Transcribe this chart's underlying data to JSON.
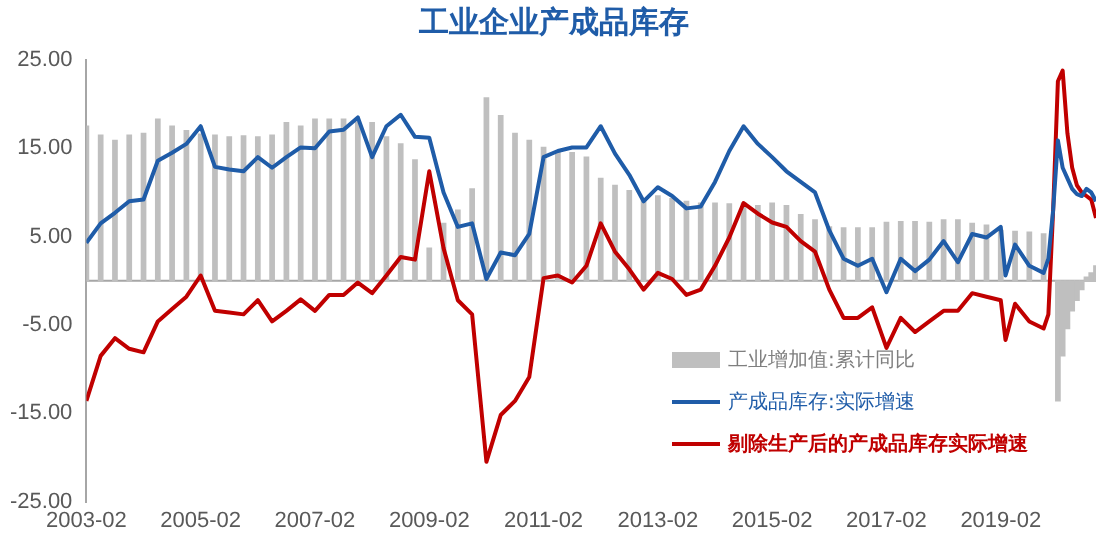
{
  "chart_data": {
    "type": "line",
    "title": "工业企业产成品库存",
    "x": [
      "2003-02",
      "2003-05",
      "2003-08",
      "2003-11",
      "2004-02",
      "2004-05",
      "2004-08",
      "2004-11",
      "2005-02",
      "2005-05",
      "2005-08",
      "2005-11",
      "2006-02",
      "2006-05",
      "2006-08",
      "2006-11",
      "2007-02",
      "2007-05",
      "2007-08",
      "2007-11",
      "2008-02",
      "2008-05",
      "2008-08",
      "2008-11",
      "2009-02",
      "2009-05",
      "2009-08",
      "2009-11",
      "2010-02",
      "2010-05",
      "2010-08",
      "2010-11",
      "2011-02",
      "2011-05",
      "2011-08",
      "2011-11",
      "2012-02",
      "2012-05",
      "2012-08",
      "2012-11",
      "2013-02",
      "2013-05",
      "2013-08",
      "2013-11",
      "2014-02",
      "2014-05",
      "2014-08",
      "2014-11",
      "2015-02",
      "2015-05",
      "2015-08",
      "2015-11",
      "2016-02",
      "2016-05",
      "2016-08",
      "2016-11",
      "2017-02",
      "2017-05",
      "2017-08",
      "2017-11",
      "2018-02",
      "2018-05",
      "2018-08",
      "2018-11",
      "2019-02",
      "2019-03",
      "2019-05",
      "2019-08",
      "2019-11",
      "2019-12",
      "2020-01",
      "2020-02",
      "2020-03",
      "2020-04",
      "2020-05",
      "2020-06",
      "2020-07",
      "2020-08",
      "2020-09",
      "2020-10"
    ],
    "series": [
      {
        "name": "工业增加值:累计同比",
        "type": "bar",
        "color": "#bfbfbf",
        "values": [
          17.5,
          16.5,
          15.9,
          16.5,
          16.7,
          18.3,
          17.5,
          17.0,
          16.6,
          16.5,
          16.3,
          16.4,
          16.3,
          16.5,
          17.9,
          17.5,
          18.3,
          18.3,
          18.3,
          18.0,
          17.9,
          16.3,
          15.5,
          13.7,
          3.7,
          6.5,
          8.0,
          10.4,
          20.7,
          18.7,
          16.7,
          15.9,
          15.1,
          14.7,
          14.5,
          14.0,
          11.6,
          10.8,
          10.2,
          9.2,
          9.6,
          9.3,
          9.0,
          8.8,
          8.8,
          8.7,
          8.8,
          8.5,
          8.8,
          8.5,
          7.5,
          6.9,
          6.1,
          6.0,
          6.0,
          6.0,
          6.6,
          6.7,
          6.7,
          6.6,
          6.9,
          6.9,
          6.5,
          6.3,
          5.7,
          null,
          5.6,
          5.5,
          5.3,
          null,
          null,
          -13.6,
          -8.5,
          -5.4,
          -3.4,
          -2.2,
          -1.0,
          0.4,
          0.9,
          1.7
        ]
      },
      {
        "name": "产成品库存:实际增速",
        "color": "#1f5ca8",
        "values": [
          4.3,
          6.5,
          7.7,
          9.0,
          9.2,
          13.6,
          14.5,
          15.5,
          17.5,
          12.9,
          12.6,
          12.4,
          14.0,
          12.8,
          14.0,
          15.1,
          15.0,
          16.9,
          17.1,
          18.5,
          14.0,
          17.5,
          18.8,
          16.3,
          16.2,
          10.0,
          6.1,
          6.5,
          0.2,
          3.2,
          2.9,
          5.3,
          14.0,
          14.7,
          15.1,
          15.1,
          17.5,
          14.4,
          12.0,
          9.0,
          10.6,
          9.6,
          8.2,
          8.4,
          11.2,
          14.7,
          17.5,
          15.5,
          14.0,
          12.4,
          11.2,
          10.0,
          5.7,
          2.5,
          1.7,
          2.5,
          -1.3,
          2.5,
          1.1,
          2.4,
          4.5,
          2.1,
          5.3,
          4.9,
          6.1,
          0.6,
          4.1,
          1.7,
          0.9,
          2.5,
          8.0,
          15.9,
          12.8,
          11.6,
          10.4,
          9.8,
          9.6,
          10.4,
          10.0,
          9.0
        ]
      },
      {
        "name": "剔除生产后的产成品库存实际增速",
        "color": "#c00000",
        "values": [
          -13.6,
          -8.5,
          -6.5,
          -7.7,
          -8.1,
          -4.6,
          -3.2,
          -1.8,
          0.6,
          -3.4,
          -3.6,
          -3.8,
          -2.2,
          -4.6,
          -3.4,
          -2.1,
          -3.4,
          -1.6,
          -1.6,
          -0.2,
          -1.4,
          0.6,
          2.7,
          2.4,
          12.4,
          3.7,
          -2.2,
          -3.8,
          -20.5,
          -15.2,
          -13.6,
          -10.9,
          0.3,
          0.6,
          -0.2,
          1.7,
          6.5,
          3.3,
          1.3,
          -1.0,
          0.9,
          0.2,
          -1.6,
          -1.0,
          1.7,
          4.9,
          8.8,
          7.6,
          6.6,
          6.1,
          4.5,
          3.3,
          -1.0,
          -4.2,
          -4.2,
          -3.0,
          -7.6,
          -4.2,
          -5.8,
          -4.6,
          -3.4,
          -3.4,
          -1.4,
          -1.8,
          -2.2,
          -6.7,
          -2.6,
          -4.6,
          -5.4,
          -3.8,
          8.0,
          22.6,
          23.8,
          16.7,
          12.8,
          10.8,
          10.0,
          9.6,
          9.2,
          7.1
        ]
      }
    ],
    "xlim": [
      "2003-02",
      "2020-10"
    ],
    "xticks": [
      "2003-02",
      "2005-02",
      "2007-02",
      "2009-02",
      "2011-02",
      "2013-02",
      "2015-02",
      "2017-02",
      "2019-02"
    ],
    "ylim": [
      -25,
      25
    ],
    "yticks": [
      {
        "value": 25,
        "label": "25.00"
      },
      {
        "value": 15,
        "label": "15.00"
      },
      {
        "value": 5,
        "label": "5.00"
      },
      {
        "value": -5,
        "label": "-5.00"
      },
      {
        "value": -15,
        "label": "-15.00"
      },
      {
        "value": -25,
        "label": "-25.00"
      }
    ],
    "ref_lines": [
      {
        "axis": "y",
        "value": 0,
        "color": "#a6a6a6"
      }
    ],
    "grid": false,
    "legend": "bottom right",
    "marker": "none",
    "line_style": "solid"
  }
}
